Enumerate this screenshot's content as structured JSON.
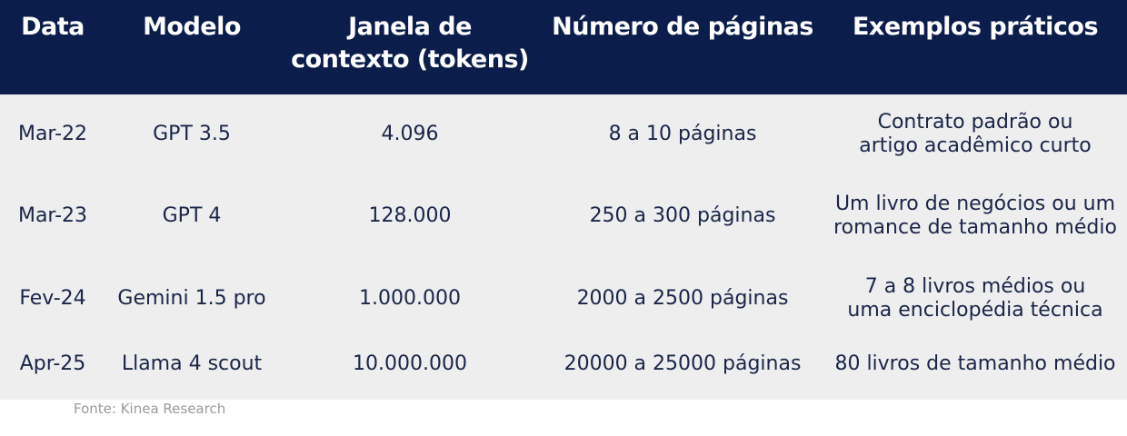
{
  "table": {
    "headers": {
      "date": "Data",
      "model": "Modelo",
      "window_line1": "Janela de",
      "window_line2": "contexto (tokens)",
      "pages": "Número de páginas",
      "examples": "Exemplos práticos"
    },
    "rows": [
      {
        "date": "Mar-22",
        "model": "GPT 3.5",
        "tokens": "4.096",
        "pages": "8 a 10 páginas",
        "example_line1": "Contrato padrão ou",
        "example_line2": "artigo acadêmico curto"
      },
      {
        "date": "Mar-23",
        "model": "GPT 4",
        "tokens": "128.000",
        "pages": "250 a 300 páginas",
        "example_line1": "Um livro de negócios ou um",
        "example_line2": "romance de tamanho médio"
      },
      {
        "date": "Fev-24",
        "model": "Gemini 1.5 pro",
        "tokens": "1.000.000",
        "pages": "2000 a 2500 páginas",
        "example_line1": "7 a 8 livros médios ou",
        "example_line2": "uma enciclopédia técnica"
      },
      {
        "date": "Apr-25",
        "model": "Llama 4 scout",
        "tokens": "10.000.000",
        "pages": "20000 a 25000 páginas",
        "example_line1": "80 livros de tamanho médio",
        "example_line2": ""
      }
    ]
  },
  "source": "Fonte: Kinea Research",
  "colors": {
    "header_bg": "#0b1e4b",
    "header_text": "#ffffff",
    "body_bg": "#eeeeee",
    "body_text": "#1a2548",
    "source_text": "#9a9a9a"
  }
}
